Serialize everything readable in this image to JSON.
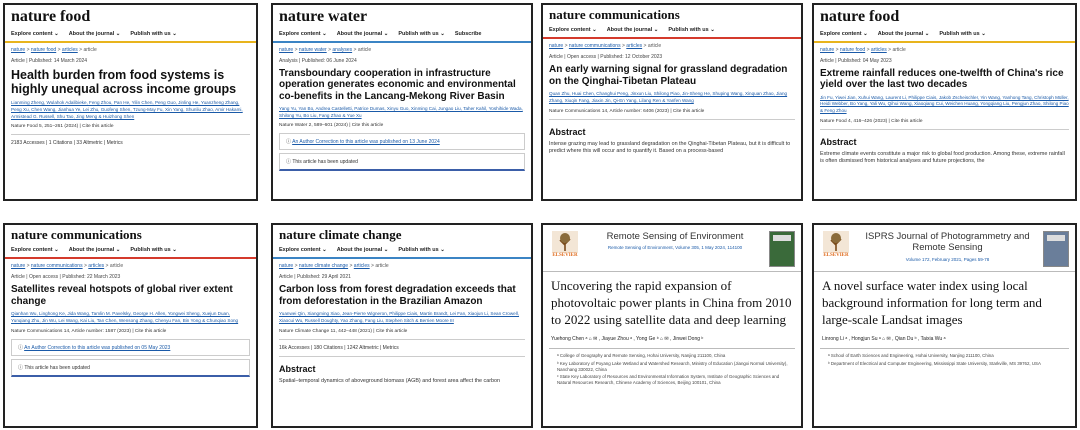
{
  "cards": [
    {
      "logo": "nature food",
      "nav": [
        "Explore content ⌄",
        "About the journal ⌄",
        "Publish with us ⌄"
      ],
      "crumb": [
        "nature",
        "nature food",
        "articles",
        "article"
      ],
      "meta": "Article | Published: 14 March 2024",
      "title": "Health burden from food systems is highly unequal across income groups",
      "authors": "Lianming Zheng, Wulahok Adalibieke, Feng Zhou, Pan He, Yilin Chen, Peng Guo, Jinling He, Yuanzheng Zhang, Peng Xu, Chen Wang, Jianhua Ye, Lei Zhu, Guofeng Shen, Tzung-May Fu, Xin Yang, Shunliu Zhao, Amir Hakami, Armistead G. Russell, Shu Tao, Jing Meng & Huizhong Shen",
      "journal": "Nature Food  5, 251–261 (2024) | Cite this article",
      "stats": "2183 Accesses | 1 Citations | 33 Altmetric | Metrics"
    },
    {
      "logo": "nature water",
      "nav": [
        "Explore content ⌄",
        "About the journal ⌄",
        "Publish with us ⌄",
        "Subscribe"
      ],
      "crumb": [
        "nature",
        "nature water",
        "analyses",
        "article"
      ],
      "meta": "Analysis | Published: 06 June 2024",
      "title": "Transboundary cooperation in infrastructure operation generates economic and environmental co-benefits in the Lancang-Mekong River Basin",
      "authors": "Yang Yu, Yan Bo, Andrea Castelletti, Patrice Dumas, Xinyu Guo, Xinming Cai, Jungao Liu, Taher Kahil, Yoshihide Wada, Shilong Yu, Bo Liu, Fang Zhao & Yue Xu",
      "journal": "Nature Water  2, 589–601 (2024) | Cite this article",
      "notice1": "An Author Correction to this article was published on 13 June 2024",
      "notice2": "This article has been updated"
    },
    {
      "logo": "nature communications",
      "nav": [
        "Explore content ⌄",
        "About the journal ⌄",
        "Publish with us ⌄"
      ],
      "crumb": [
        "nature",
        "nature communications",
        "articles",
        "article"
      ],
      "meta_oa": "Open access",
      "meta": "Article | Open access | Published: 12 October 2023",
      "title": "An early warning signal for grassland degradation on the Qinghai-Tibetan Plateau",
      "authors": "Quan Zhu, Huai Chen, Changhui Peng, Jinxun Liu, Shilong Piao, Jin-Sheng He, Shuping Wang, Xinquan Zhao, Jiang Zhang, Xiuqin Fang, Jiaxin Jin, Qi-En Yang, Lilang Ren & Yanfen Wang",
      "journal": "Nature Communications  14, Article number: 6406 (2023) | Cite this article",
      "abstract_h": "Abstract",
      "abstract": "Intense grazing may lead to grassland degradation on the Qinghai-Tibetan Plateau, but it is difficult to predict where this will occur and to quantify it. Based on a process-based"
    },
    {
      "logo": "nature food",
      "nav": [
        "Explore content ⌄",
        "About the journal ⌄",
        "Publish with us ⌄"
      ],
      "crumb": [
        "nature",
        "nature food",
        "articles",
        "article"
      ],
      "meta": "Article | Published: 04 May 2023",
      "title": "Extreme rainfall reduces one-twelfth of China's rice yield over the last two decades",
      "authors": "Jin Fu, Yiwei Jian, Xuhui Wang, Laurent Li, Philippe Ciais, Jakob Zscheischler, Yin Wang, Yanhong Tang, Christoph Müller, Heidi Webber, Bo Yang, Yali Wu, Qihui Wang, Xiaoqiang Cui, Weichen Huang, Yongqiang Liu, Pengjun Zhao, Shilong Piao & Feng Zhou",
      "journal": "Nature Food  4, 416–426 (2023) | Cite this article",
      "abstract_h": "Abstract",
      "abstract": "Extreme climate events constitute a major risk to global food production. Among these, extreme rainfall is often dismissed from historical analyses and future projections, the"
    },
    {
      "logo": "nature communications",
      "nav": [
        "Explore content ⌄",
        "About the journal ⌄",
        "Publish with us ⌄"
      ],
      "crumb": [
        "nature",
        "nature communications",
        "articles",
        "article"
      ],
      "meta": "Article | Open access | Published: 22 March 2023",
      "title": "Satellites reveal hotspots of global river extent change",
      "authors": "Qianhan Wu, Linghong Ke, Jida Wang, Tamlin M. Pavelsky, George H. Allen, Yongwei Sheng, Xuejun Duan, Yunqiang Zhu, Jin Wu, Lei Wang, Kai Liu, Tan Chen, Wensong Zhang, Chenyu Fan, Bin Yong & Chunqiao Song",
      "journal": "Nature Communications  14, Article number: 1587 (2023) | Cite this article",
      "notice1": "An Author Correction to this article was published on 05 May 2023",
      "notice2": "This article has been updated"
    },
    {
      "logo": "nature climate change",
      "nav": [
        "Explore content ⌄",
        "About the journal ⌄",
        "Publish with us ⌄"
      ],
      "crumb": [
        "nature",
        "nature climate change",
        "articles",
        "article"
      ],
      "meta": "Article | Published: 29 April 2021",
      "title": "Carbon loss from forest degradation exceeds that from deforestation in the Brazilian Amazon",
      "authors": "Yuanwei Qin, Xiangming Xiao, Jean-Pierre Wigneron, Philippe Ciais, Martin Brandt, Lei Fan, Xiaojun Li, Sean Crowell, Xiaocui Wu, Russell Doughty, Yao Zhang, Fang Liu, Stephen Sitch & Berrien Moore III",
      "journal": "Nature Climate Change  11, 442–448 (2021) | Cite this article",
      "stats": "16k Accesses | 180 Citations | 1242 Altmetric | Metrics",
      "abstract_h": "Abstract",
      "abstract": "Spatial–temporal dynamics of aboveground biomass (AGB) and forest area affect the carbon"
    },
    {
      "journal_name": "Remote Sensing of Environment",
      "volume": "Remote Sensing of Environment, Volume 305, 1 May 2024, 114100",
      "publisher": "ELSEVIER",
      "title": "Uncovering the rapid expansion of photovoltaic power plants in China from 2010 to 2022 using satellite data and deep learning",
      "authors": "Yuehong Chen ᵃ ⌂ ✉ , Jiayue Zhou ᵃ , Yong Ge ᵇ ⌂ ✉ , Jinwei Dong ᵇ",
      "affiliations": [
        "ᵃ College of Geography and Remote Sensing, Hohai University, Nanjing 211100, China",
        "ᵇ Key Laboratory of Poyang Lake Wetland and Watershed Research, Ministry of Education (Jiangxi Normal University), Nanchang 330022, China",
        "ᶜ State Key Laboratory of Resources and Environmental Information System, Institute of Geographic Sciences and Natural Resources Research, Chinese Academy of Sciences, Beijing 100101, China"
      ]
    },
    {
      "journal_name": "ISPRS Journal of Photogrammetry and Remote Sensing",
      "volume": "Volume 172, February 2021, Pages 59-78",
      "publisher": "ELSEVIER",
      "title": "A novel surface water index using local background information for long term and large-scale Landsat images",
      "authors": "Linrong Li ᵃ , Hongjun Su ᵃ ⌂ ✉ , Qian Du ᵇ , Taixia Wu ᵃ",
      "affiliations": [
        "ᵃ School of Earth Sciences and Engineering, Hohai University, Nanjing 211100, China",
        "ᵇ Department of Electrical and Computer Engineering, Mississippi State University, Starkville, MS 39762, USA"
      ]
    }
  ],
  "colors": {
    "yellow": "#e8b41d",
    "blue": "#3b84c4",
    "red": "#d43a2c",
    "link": "#1a5aa8",
    "elsevier": "#e06c1f"
  }
}
